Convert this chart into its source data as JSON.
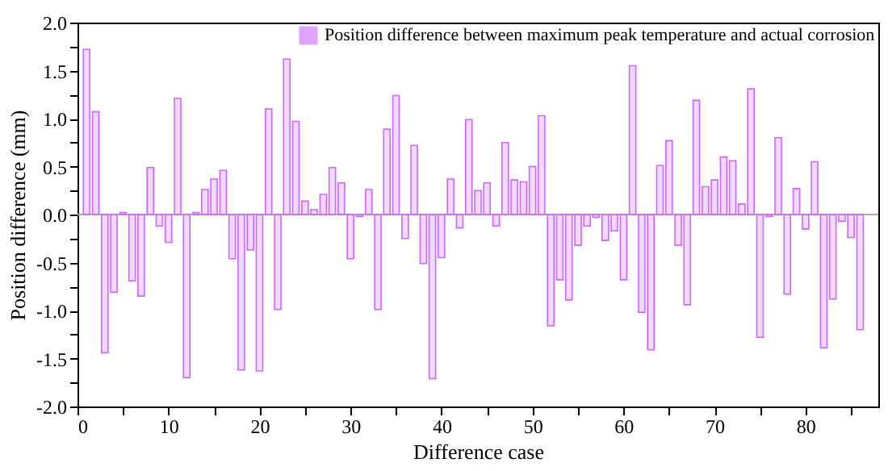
{
  "chart_data": {
    "type": "bar",
    "xlabel": "Difference case",
    "ylabel": "Position difference (mm)",
    "x": [
      1,
      2,
      3,
      4,
      5,
      6,
      7,
      8,
      9,
      10,
      11,
      12,
      13,
      14,
      15,
      16,
      17,
      18,
      19,
      20,
      21,
      22,
      23,
      24,
      25,
      26,
      27,
      28,
      29,
      30,
      31,
      32,
      33,
      34,
      35,
      36,
      37,
      38,
      39,
      40,
      41,
      42,
      43,
      44,
      45,
      46,
      47,
      48,
      49,
      50,
      51,
      52,
      53,
      54,
      55,
      56,
      57,
      58,
      59,
      60,
      61,
      62,
      63,
      64,
      65,
      66,
      67,
      68,
      69,
      70,
      71,
      72,
      73,
      74,
      75,
      76,
      77,
      78,
      79,
      80,
      81,
      82,
      83,
      84,
      85,
      86
    ],
    "series": [
      {
        "name": "Position difference between maximum peak temperature and actual corrosion",
        "color": "#cc66ff",
        "values": [
          1.72,
          1.07,
          -1.44,
          -0.81,
          0.02,
          -0.69,
          -0.85,
          0.49,
          -0.12,
          -0.29,
          1.21,
          -1.7,
          0.02,
          0.26,
          0.37,
          0.46,
          -0.46,
          -1.62,
          -0.37,
          -1.63,
          1.1,
          -0.99,
          1.62,
          0.97,
          0.14,
          0.05,
          0.21,
          0.49,
          0.33,
          -0.46,
          -0.02,
          0.26,
          -0.99,
          0.89,
          1.24,
          -0.25,
          0.72,
          -0.51,
          -1.71,
          -0.45,
          0.37,
          -0.14,
          0.99,
          0.25,
          0.33,
          -0.12,
          0.75,
          0.36,
          0.34,
          0.5,
          1.03,
          -1.16,
          -0.68,
          -0.89,
          -0.32,
          -0.12,
          -0.03,
          -0.27,
          -0.17,
          -0.68,
          1.55,
          -1.02,
          -1.41,
          0.51,
          0.77,
          -0.32,
          -0.94,
          1.19,
          0.29,
          0.36,
          0.6,
          0.56,
          0.11,
          1.31,
          -1.28,
          -0.02,
          0.8,
          -0.83,
          0.27,
          -0.15,
          0.55,
          -1.39,
          -0.88,
          -0.07,
          -0.24,
          -1.2
        ]
      }
    ],
    "xlim": [
      0,
      88
    ],
    "xticks": [
      0,
      {
        "value": 5,
        "label": null
      },
      10,
      {
        "value": 15,
        "label": null
      },
      20,
      {
        "value": 25,
        "label": null
      },
      30,
      {
        "value": 35,
        "label": null
      },
      40,
      {
        "value": 45,
        "label": null
      },
      50,
      {
        "value": 55,
        "label": null
      },
      60,
      {
        "value": 65,
        "label": null
      },
      70,
      {
        "value": 75,
        "label": null
      },
      80,
      {
        "value": 85,
        "label": null
      }
    ],
    "ylim": [
      -2.0,
      2.0
    ],
    "yticks": [
      {
        "value": -2,
        "label": "-2.0"
      },
      {
        "value": -1.75,
        "label": null
      },
      {
        "value": -1.5,
        "label": "-1.5"
      },
      {
        "value": -1.25,
        "label": null
      },
      {
        "value": -1,
        "label": "-1.0"
      },
      {
        "value": -0.75,
        "label": null
      },
      {
        "value": -0.5,
        "label": "-0.5"
      },
      {
        "value": -0.25,
        "label": null
      },
      {
        "value": 0,
        "label": "0.0"
      },
      {
        "value": 0.25,
        "label": null
      },
      {
        "value": 0.5,
        "label": "0.5"
      },
      {
        "value": 0.75,
        "label": null
      },
      {
        "value": 1,
        "label": "1.0"
      },
      {
        "value": 1.25,
        "label": null
      },
      {
        "value": 1.5,
        "label": "1.5"
      },
      {
        "value": 1.75,
        "label": null
      },
      {
        "value": 2,
        "label": "2.0"
      }
    ],
    "ref_lines": [
      {
        "axis": "y",
        "value": 0,
        "color": "#aaaaaa"
      }
    ],
    "legend": "top right",
    "grid": false
  }
}
